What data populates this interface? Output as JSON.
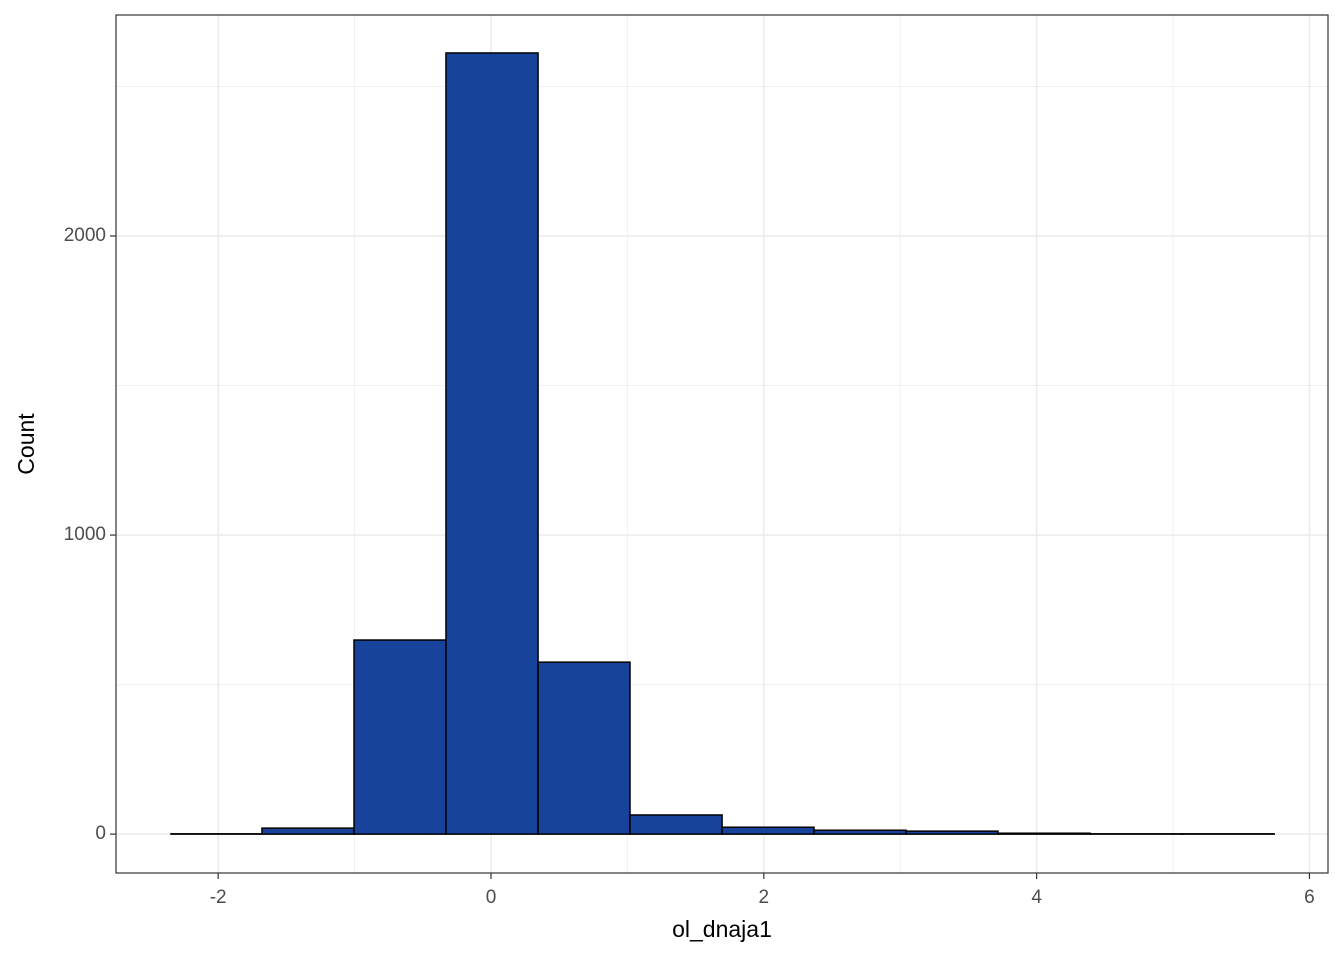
{
  "chart_data": {
    "type": "histogram",
    "x_label": "ol_dnaja1",
    "y_label": "Count",
    "bins": [
      -2.346,
      -1.679,
      -1.004,
      -0.33,
      0.345,
      1.019,
      1.694,
      2.368,
      3.043,
      3.717,
      4.392,
      5.066,
      5.741
    ],
    "values": [
      1,
      20,
      649,
      2612,
      575,
      64,
      23,
      13,
      10,
      3,
      1,
      1
    ],
    "color": "#18439a",
    "edge_color": "#000000",
    "xlim": [
      -2.749,
      6.136
    ],
    "xticks": [
      -2,
      0,
      2,
      4,
      6
    ],
    "ylim": [
      -130,
      2739
    ],
    "yticks": [
      0,
      1000,
      2000
    ],
    "grid": true,
    "minor_grid": true
  }
}
